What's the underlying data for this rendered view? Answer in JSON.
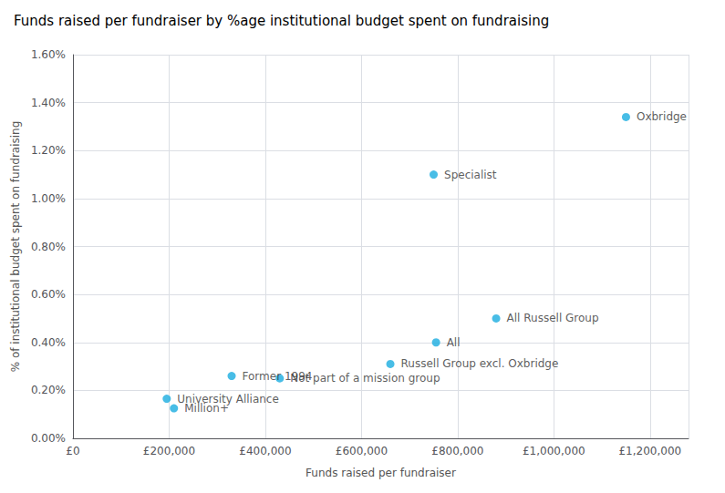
{
  "chart_data": {
    "type": "scatter",
    "title": "Funds raised per fundraiser by %age institutional budget spent on fundraising",
    "xlabel": "Funds raised per fundraiser",
    "ylabel": "% of institutional budget spent on fundraising",
    "x": [
      1150000,
      750000,
      880000,
      755000,
      660000,
      430000,
      330000,
      195000,
      210000
    ],
    "values": [
      0.0134,
      0.011,
      0.005,
      0.004,
      0.0031,
      0.0025,
      0.0026,
      0.00165,
      0.00125
    ],
    "annotations": [
      "Oxbridge",
      "Specialist",
      "All Russell Group",
      "All",
      "Russell Group excl. Oxbridge",
      "Not part of a mission group",
      "Former 1994",
      "University Alliance",
      "Million+"
    ],
    "color": "#1AACE0",
    "xlim": [
      0,
      1280000
    ],
    "xticks": [
      {
        "value": 0,
        "label": "£0"
      },
      {
        "value": 200000,
        "label": "£200,000"
      },
      {
        "value": 400000,
        "label": "£400,000"
      },
      {
        "value": 600000,
        "label": "£600,000"
      },
      {
        "value": 800000,
        "label": "£800,000"
      },
      {
        "value": 1000000,
        "label": "£1,000,000"
      },
      {
        "value": 1200000,
        "label": "£1,200,000"
      }
    ],
    "ylim": [
      0,
      0.016
    ],
    "yticks": [
      {
        "value": 0.0,
        "label": "0.00%"
      },
      {
        "value": 0.002,
        "label": "0.20%"
      },
      {
        "value": 0.004,
        "label": "0.40%"
      },
      {
        "value": 0.006,
        "label": "0.60%"
      },
      {
        "value": 0.008,
        "label": "0.80%"
      },
      {
        "value": 0.01,
        "label": "1.00%"
      },
      {
        "value": 0.012,
        "label": "1.20%"
      },
      {
        "value": 0.014,
        "label": "1.40%"
      },
      {
        "value": 0.016,
        "label": "1.60%"
      }
    ],
    "grid": true
  }
}
